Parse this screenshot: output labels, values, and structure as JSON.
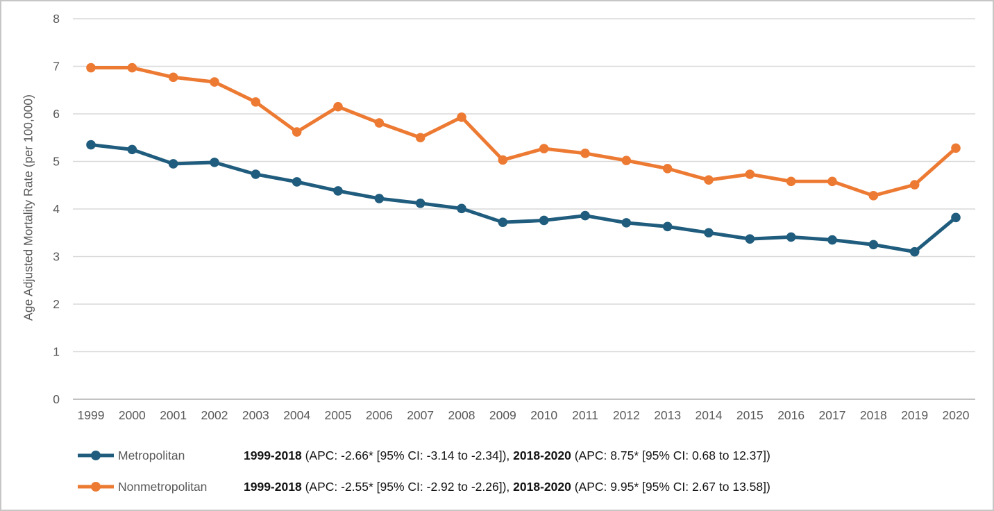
{
  "chart_data": {
    "type": "line",
    "title": "",
    "xlabel": "",
    "ylabel": "Age Adjusted Mortality Rate (per 100,000)",
    "ylim": [
      0,
      8
    ],
    "yticks": [
      0,
      1,
      2,
      3,
      4,
      5,
      6,
      7,
      8
    ],
    "grid": "horizontal",
    "legend_position": "bottom-left",
    "categories": [
      "1999",
      "2000",
      "2001",
      "2002",
      "2003",
      "2004",
      "2005",
      "2006",
      "2007",
      "2008",
      "2009",
      "2010",
      "2011",
      "2012",
      "2013",
      "2014",
      "2015",
      "2016",
      "2017",
      "2018",
      "2019",
      "2020"
    ],
    "series": [
      {
        "name": "Metropolitan",
        "color": "#1F5C7D",
        "values": [
          5.35,
          5.25,
          4.95,
          4.98,
          4.73,
          4.57,
          4.38,
          4.22,
          4.12,
          4.01,
          3.72,
          3.76,
          3.86,
          3.71,
          3.63,
          3.5,
          3.37,
          3.41,
          3.35,
          3.25,
          3.1,
          3.82
        ]
      },
      {
        "name": "Nonmetropolitan",
        "color": "#ED7A33",
        "values": [
          6.97,
          6.97,
          6.77,
          6.67,
          6.25,
          5.62,
          6.15,
          5.81,
          5.5,
          5.93,
          5.03,
          5.27,
          5.17,
          5.02,
          4.85,
          4.61,
          4.73,
          4.58,
          4.58,
          4.28,
          4.51,
          5.28
        ]
      }
    ]
  },
  "legend": {
    "rows": [
      {
        "stats_segments": [
          {
            "text": "1999-2018",
            "bold": true
          },
          {
            "text": " (APC: -2.66* [95% CI: -3.14 to -2.34]), ",
            "bold": false
          },
          {
            "text": "2018-2020",
            "bold": true
          },
          {
            "text": " (APC: 8.75* [95% CI: 0.68 to 12.37])",
            "bold": false
          }
        ]
      },
      {
        "stats_segments": [
          {
            "text": "1999-2018",
            "bold": true
          },
          {
            "text": " (APC: -2.55* [95% CI: -2.92 to -2.26]), ",
            "bold": false
          },
          {
            "text": "2018-2020",
            "bold": true
          },
          {
            "text": " (APC: 9.95* [95% CI: 2.67 to 13.58])",
            "bold": false
          }
        ]
      }
    ]
  },
  "colors": {
    "grid": "#D9D9D9",
    "axis_line": "#C2C2C2",
    "axis_text": "#595959",
    "stats_text": "#141414",
    "border": "#C6C6C6"
  }
}
